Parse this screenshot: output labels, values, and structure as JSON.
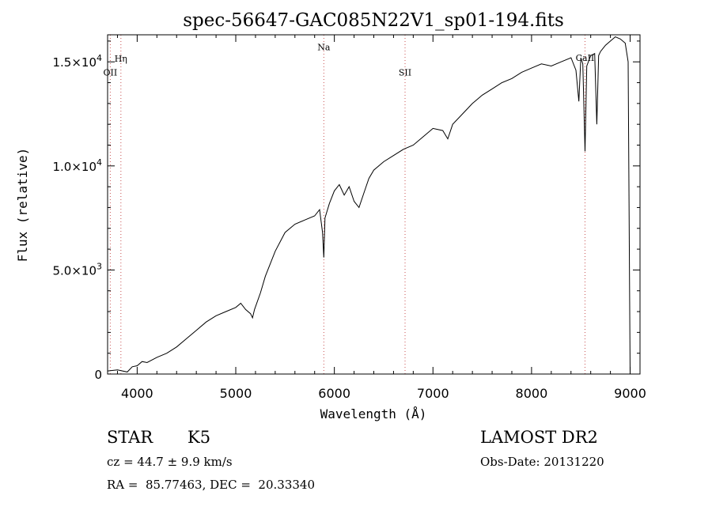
{
  "chart_data": {
    "type": "line",
    "title": "spec-56647-GAC085N22V1_sp01-194.fits",
    "xlabel": "Wavelength (Å)",
    "ylabel": "Flux (relative)",
    "xlim": [
      3700,
      9100
    ],
    "ylim": [
      0,
      16300
    ],
    "xticks": [
      {
        "value": 4000,
        "label": "4000"
      },
      {
        "value": 5000,
        "label": "5000"
      },
      {
        "value": 6000,
        "label": "6000"
      },
      {
        "value": 7000,
        "label": "7000"
      },
      {
        "value": 8000,
        "label": "8000"
      },
      {
        "value": 9000,
        "label": "9000"
      }
    ],
    "yticks": [
      {
        "value": 0,
        "mantissa": "0",
        "exp": ""
      },
      {
        "value": 5000,
        "mantissa": "5.0×10",
        "exp": "3"
      },
      {
        "value": 10000,
        "mantissa": "1.0×10",
        "exp": "4"
      },
      {
        "value": 15000,
        "mantissa": "1.5×10",
        "exp": "4"
      }
    ],
    "lines": [
      {
        "name": "OII",
        "x": 3727,
        "y_label": 14350
      },
      {
        "name": "Hη",
        "x": 3835,
        "y_label": 15000
      },
      {
        "name": "Na",
        "x": 5893,
        "y_label": 15550
      },
      {
        "name": "SII",
        "x": 6717,
        "y_label": 14350
      },
      {
        "name": "CaII",
        "x": 8542,
        "y_label": 15050
      }
    ],
    "series": [
      {
        "x": [
          3700,
          3800,
          3900,
          3950,
          4000,
          4050,
          4100,
          4200,
          4300,
          4400,
          4500,
          4600,
          4700,
          4800,
          4900,
          5000,
          5050,
          5100,
          5150,
          5170,
          5190,
          5250,
          5300,
          5400,
          5500,
          5600,
          5700,
          5800,
          5850,
          5880,
          5893,
          5905,
          5950,
          6000,
          6050,
          6100,
          6150,
          6200,
          6250,
          6300,
          6350,
          6400,
          6500,
          6600,
          6700,
          6800,
          6900,
          7000,
          7100,
          7150,
          7200,
          7300,
          7400,
          7500,
          7600,
          7700,
          7800,
          7900,
          8000,
          8100,
          8200,
          8300,
          8400,
          8450,
          8480,
          8500,
          8520,
          8542,
          8560,
          8600,
          8640,
          8662,
          8680,
          8700,
          8750,
          8800,
          8850,
          8900,
          8950,
          8980,
          9000
        ],
        "y": [
          150,
          200,
          100,
          350,
          400,
          600,
          550,
          800,
          1000,
          1300,
          1700,
          2100,
          2500,
          2800,
          3000,
          3200,
          3400,
          3100,
          2900,
          2700,
          3100,
          3900,
          4700,
          5900,
          6800,
          7200,
          7400,
          7600,
          7900,
          6800,
          5600,
          7500,
          8200,
          8800,
          9100,
          8600,
          9000,
          8300,
          8000,
          8700,
          9400,
          9800,
          10200,
          10500,
          10800,
          11000,
          11400,
          11800,
          11700,
          11300,
          12000,
          12500,
          13000,
          13400,
          13700,
          14000,
          14200,
          14500,
          14700,
          14900,
          14800,
          15000,
          15200,
          14600,
          13100,
          15200,
          14900,
          10700,
          14800,
          15300,
          15400,
          12000,
          15300,
          15500,
          15800,
          16000,
          16200,
          16100,
          15900,
          15000,
          0
        ]
      }
    ]
  },
  "info": {
    "object_type": "STAR",
    "subclass": "K5",
    "survey": "LAMOST DR2",
    "cz": "cz = 44.7 ± 9.9 km/s",
    "obs_date": "Obs-Date: 20131220",
    "coords": "RA =  85.77463, DEC =  20.33340"
  }
}
